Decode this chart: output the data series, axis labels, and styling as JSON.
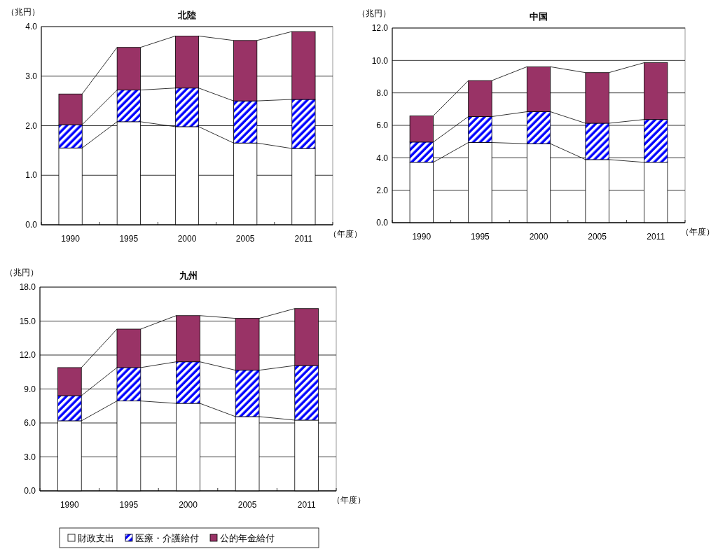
{
  "chart_data": [
    {
      "type": "bar",
      "title": "北陸",
      "ylabel": "（兆円）",
      "xlabel": "（年度）",
      "categories": [
        "1990",
        "1995",
        "2000",
        "2005",
        "2011"
      ],
      "stacked": true,
      "ylim": [
        0,
        4
      ],
      "yticks": [
        {
          "value": 0,
          "label": "0.0"
        },
        {
          "value": 1,
          "label": "1.0"
        },
        {
          "value": 2,
          "label": "2.0"
        },
        {
          "value": 3,
          "label": "3.0"
        },
        {
          "value": 4,
          "label": "4.0"
        }
      ],
      "grid": "y",
      "series": [
        {
          "color": "#ffffff",
          "values": [
            1.55,
            2.08,
            1.98,
            1.65,
            1.54
          ]
        },
        {
          "color": "#0000ff",
          "values": [
            0.47,
            0.64,
            0.78,
            0.85,
            0.99
          ]
        },
        {
          "color": "#993366",
          "values": [
            0.62,
            0.86,
            1.05,
            1.22,
            1.37
          ]
        }
      ]
    },
    {
      "type": "bar",
      "title": "中国",
      "ylabel": "（兆円）",
      "xlabel": "（年度）",
      "categories": [
        "1990",
        "1995",
        "2000",
        "2005",
        "2011"
      ],
      "stacked": true,
      "ylim": [
        0,
        12
      ],
      "yticks": [
        {
          "value": 0,
          "label": "0.0"
        },
        {
          "value": 2,
          "label": "2.0"
        },
        {
          "value": 4,
          "label": "4.0"
        },
        {
          "value": 6,
          "label": "6.0"
        },
        {
          "value": 8,
          "label": "8.0"
        },
        {
          "value": 10,
          "label": "10.0"
        },
        {
          "value": 12,
          "label": "12.0"
        }
      ],
      "grid": "y",
      "series": [
        {
          "color": "#ffffff",
          "values": [
            3.72,
            4.94,
            4.87,
            3.89,
            3.72
          ]
        },
        {
          "color": "#0000ff",
          "values": [
            1.25,
            1.6,
            1.97,
            2.24,
            2.64
          ]
        },
        {
          "color": "#993366",
          "values": [
            1.61,
            2.22,
            2.77,
            3.12,
            3.5
          ]
        }
      ]
    },
    {
      "type": "bar",
      "title": "九州",
      "ylabel": "（兆円）",
      "xlabel": "（年度）",
      "categories": [
        "1990",
        "1995",
        "2000",
        "2005",
        "2011"
      ],
      "stacked": true,
      "ylim": [
        0,
        18
      ],
      "yticks": [
        {
          "value": 0,
          "label": "0.0"
        },
        {
          "value": 3,
          "label": "3.0"
        },
        {
          "value": 6,
          "label": "6.0"
        },
        {
          "value": 9,
          "label": "9.0"
        },
        {
          "value": 12,
          "label": "12.0"
        },
        {
          "value": 15,
          "label": "15.0"
        },
        {
          "value": 18,
          "label": "18.0"
        }
      ],
      "grid": "y",
      "legend": "bottom",
      "series": [
        {
          "name": "財政支出",
          "color": "#ffffff",
          "values": [
            6.19,
            7.94,
            7.73,
            6.56,
            6.25
          ]
        },
        {
          "name": "医療・介護給付",
          "color": "#0000ff",
          "values": [
            2.22,
            2.95,
            3.67,
            4.1,
            4.82
          ]
        },
        {
          "name": "公的年金給付",
          "color": "#993366",
          "values": [
            2.48,
            3.4,
            4.08,
            4.58,
            5.03
          ]
        }
      ]
    }
  ]
}
